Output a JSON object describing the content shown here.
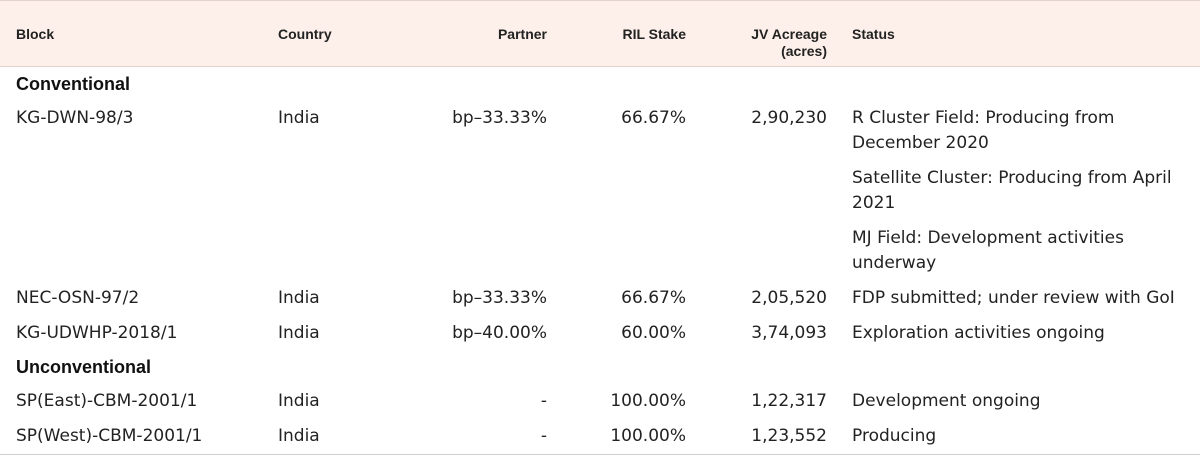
{
  "table": {
    "headers": {
      "block": "Block",
      "country": "Country",
      "partner": "Partner",
      "ril_stake": "RIL Stake",
      "jv_acreage_line1": "JV Acreage",
      "jv_acreage_line2": "(acres)",
      "status": "Status"
    },
    "sections": [
      {
        "title": "Conventional",
        "rows": [
          {
            "block": "KG-DWN-98/3",
            "country": "India",
            "partner": "bp–33.33%",
            "ril_stake": "66.67%",
            "jv_acreage": "2,90,230",
            "status": [
              "R Cluster Field: Producing from December 2020",
              "Satellite Cluster: Producing from April 2021",
              "MJ Field: Development activities underway"
            ]
          },
          {
            "block": "NEC-OSN-97/2",
            "country": "India",
            "partner": "bp–33.33%",
            "ril_stake": "66.67%",
            "jv_acreage": "2,05,520",
            "status": [
              "FDP submitted; under review with GoI"
            ]
          },
          {
            "block": "KG-UDWHP-2018/1",
            "country": "India",
            "partner": "bp–40.00%",
            "ril_stake": "60.00%",
            "jv_acreage": "3,74,093",
            "status": [
              "Exploration activities ongoing"
            ]
          }
        ]
      },
      {
        "title": "Unconventional",
        "rows": [
          {
            "block": "SP(East)-CBM-2001/1",
            "country": "India",
            "partner": "-",
            "ril_stake": "100.00%",
            "jv_acreage": "1,22,317",
            "status": [
              "Development ongoing"
            ]
          },
          {
            "block": "SP(West)-CBM-2001/1",
            "country": "India",
            "partner": "-",
            "ril_stake": "100.00%",
            "jv_acreage": "1,23,552",
            "status": [
              "Producing"
            ]
          }
        ]
      }
    ]
  }
}
